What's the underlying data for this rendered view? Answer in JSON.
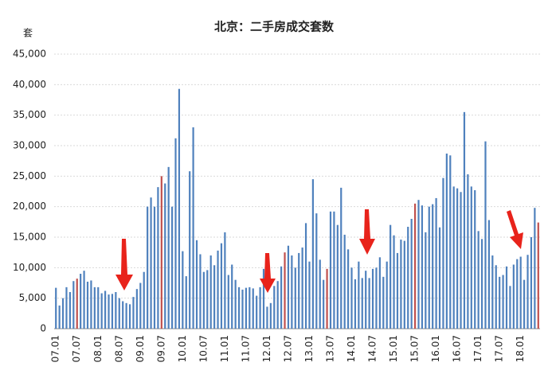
{
  "chart_data": {
    "type": "bar",
    "title": "北京：二手房成交套数",
    "y_label": "套",
    "categories": [
      "07.01",
      null,
      null,
      null,
      null,
      null,
      "07.07",
      null,
      null,
      null,
      null,
      null,
      "08.01",
      null,
      null,
      null,
      null,
      null,
      "08.07",
      null,
      null,
      null,
      null,
      null,
      "09.01",
      null,
      null,
      null,
      null,
      null,
      "09.07",
      null,
      null,
      null,
      null,
      null,
      "10.01",
      null,
      null,
      null,
      null,
      null,
      "10.07",
      null,
      null,
      null,
      null,
      null,
      "11.01",
      null,
      null,
      null,
      null,
      null,
      "11.07",
      null,
      null,
      null,
      null,
      null,
      "12.01",
      null,
      null,
      null,
      null,
      null,
      "12.07",
      null,
      null,
      null,
      null,
      null,
      "13.01",
      null,
      null,
      null,
      null,
      null,
      "13.07",
      null,
      null,
      null,
      null,
      null,
      "14.01",
      null,
      null,
      null,
      null,
      null,
      "14.07",
      null,
      null,
      null,
      null,
      null,
      "15.01",
      null,
      null,
      null,
      null,
      null,
      "15.07",
      null,
      null,
      null,
      null,
      null,
      "16.01",
      null,
      null,
      null,
      null,
      null,
      "16.07",
      null,
      null,
      null,
      null,
      null,
      "17.01",
      null,
      null,
      null,
      null,
      null,
      "17.07",
      null,
      null,
      null,
      null,
      null,
      "18.01",
      null,
      null,
      null,
      null,
      null
    ],
    "values": [
      6700,
      3800,
      5000,
      6800,
      6000,
      7800,
      8200,
      9000,
      9500,
      7700,
      7900,
      6800,
      6800,
      5800,
      6200,
      5600,
      5700,
      6000,
      5000,
      4500,
      4200,
      4000,
      5200,
      6500,
      7500,
      9300,
      20000,
      21500,
      20000,
      23200,
      25000,
      23800,
      26500,
      20000,
      31200,
      39300,
      12700,
      8600,
      25800,
      33000,
      14500,
      12200,
      9300,
      9600,
      12000,
      10400,
      12800,
      14000,
      15800,
      8800,
      10500,
      8000,
      6800,
      6400,
      6700,
      6800,
      6600,
      5400,
      6800,
      9800,
      3600,
      4200,
      7000,
      7800,
      10200,
      12500,
      13600,
      12000,
      10000,
      12400,
      13300,
      17300,
      11000,
      24500,
      18900,
      11300,
      8000,
      9800,
      19200,
      19200,
      17000,
      23100,
      15400,
      13000,
      10000,
      8100,
      11000,
      8300,
      9500,
      8300,
      9800,
      10000,
      11700,
      8500,
      11000,
      17000,
      15300,
      12400,
      14600,
      14400,
      16700,
      18000,
      20500,
      21100,
      20200,
      15800,
      20000,
      20400,
      21400,
      16600,
      24700,
      28700,
      28400,
      23300,
      23000,
      22400,
      35500,
      25300,
      23300,
      22700,
      16000,
      14700,
      30700,
      17800,
      12000,
      10400,
      8500,
      8800,
      10200,
      7000,
      10500,
      11400,
      11800,
      8000,
      12100,
      15000,
      19800,
      17400
    ],
    "colors": [
      "#4f81bd",
      "#4f81bd",
      "#4f81bd",
      "#4f81bd",
      "#4f81bd",
      "#4f81bd",
      "#c0504d",
      "#4f81bd",
      "#4f81bd",
      "#4f81bd",
      "#4f81bd",
      "#4f81bd",
      "#4f81bd",
      "#4f81bd",
      "#4f81bd",
      "#4f81bd",
      "#4f81bd",
      "#4f81bd",
      "#4f81bd",
      "#4f81bd",
      "#4f81bd",
      "#4f81bd",
      "#4f81bd",
      "#4f81bd",
      "#4f81bd",
      "#4f81bd",
      "#4f81bd",
      "#4f81bd",
      "#4f81bd",
      "#4f81bd",
      "#c0504d",
      "#4f81bd",
      "#4f81bd",
      "#4f81bd",
      "#4f81bd",
      "#4f81bd",
      "#4f81bd",
      "#4f81bd",
      "#4f81bd",
      "#4f81bd",
      "#4f81bd",
      "#4f81bd",
      "#4f81bd",
      "#4f81bd",
      "#4f81bd",
      "#4f81bd",
      "#4f81bd",
      "#4f81bd",
      "#4f81bd",
      "#4f81bd",
      "#4f81bd",
      "#4f81bd",
      "#4f81bd",
      "#4f81bd",
      "#4f81bd",
      "#4f81bd",
      "#4f81bd",
      "#4f81bd",
      "#4f81bd",
      "#4f81bd",
      "#4f81bd",
      "#4f81bd",
      "#4f81bd",
      "#4f81bd",
      "#4f81bd",
      "#c0504d",
      "#4f81bd",
      "#4f81bd",
      "#4f81bd",
      "#4f81bd",
      "#4f81bd",
      "#4f81bd",
      "#4f81bd",
      "#4f81bd",
      "#4f81bd",
      "#4f81bd",
      "#4f81bd",
      "#c0504d",
      "#4f81bd",
      "#4f81bd",
      "#4f81bd",
      "#4f81bd",
      "#4f81bd",
      "#4f81bd",
      "#4f81bd",
      "#4f81bd",
      "#4f81bd",
      "#4f81bd",
      "#4f81bd",
      "#4f81bd",
      "#4f81bd",
      "#4f81bd",
      "#4f81bd",
      "#4f81bd",
      "#4f81bd",
      "#4f81bd",
      "#4f81bd",
      "#4f81bd",
      "#4f81bd",
      "#4f81bd",
      "#4f81bd",
      "#4f81bd",
      "#c0504d",
      "#4f81bd",
      "#4f81bd",
      "#4f81bd",
      "#4f81bd",
      "#4f81bd",
      "#4f81bd",
      "#4f81bd",
      "#4f81bd",
      "#4f81bd",
      "#4f81bd",
      "#4f81bd",
      "#4f81bd",
      "#4f81bd",
      "#4f81bd",
      "#4f81bd",
      "#4f81bd",
      "#4f81bd",
      "#4f81bd",
      "#4f81bd",
      "#4f81bd",
      "#4f81bd",
      "#4f81bd",
      "#4f81bd",
      "#4f81bd",
      "#4f81bd",
      "#4f81bd",
      "#4f81bd",
      "#4f81bd",
      "#4f81bd",
      "#4f81bd",
      "#4f81bd",
      "#4f81bd",
      "#4f81bd",
      "#4f81bd",
      "#c0504d"
    ],
    "ylim": [
      0,
      45000
    ],
    "yticks": [
      0,
      {
        "value": 5000,
        "label": "5,000"
      },
      {
        "value": 10000,
        "label": "10,000"
      },
      {
        "value": 15000,
        "label": "15,000"
      },
      {
        "value": 20000,
        "label": "20,000"
      },
      {
        "value": 25000,
        "label": "25,000"
      },
      {
        "value": 30000,
        "label": "30,000"
      },
      {
        "value": 35000,
        "label": "35,000"
      },
      {
        "value": 40000,
        "label": "40,000"
      },
      {
        "value": 45000,
        "label": "45,000"
      }
    ],
    "grid": true
  }
}
